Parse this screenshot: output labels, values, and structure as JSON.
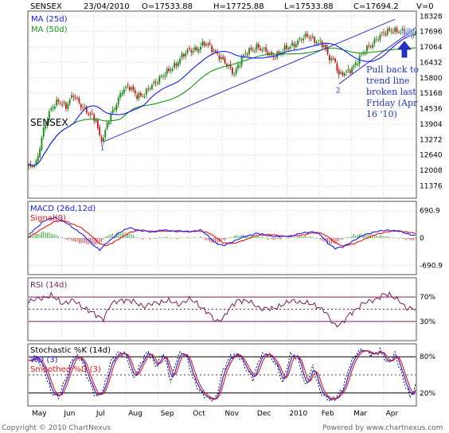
{
  "header": {
    "symbol": "SENSEX",
    "date": "23/04/2010",
    "open": "O=17533.88",
    "high": "H=17725.88",
    "low": "L=17533.88",
    "close": "C=17694.2",
    "volume": "V=0"
  },
  "footer": {
    "copyright": "Copyright © 2010 ChartNexus",
    "powered": "Powered by www.chartnexus.com"
  },
  "chart_data": [
    {
      "type": "candlestick",
      "title": "SENSEX",
      "ylim": [
        10900,
        18500
      ],
      "y_ticks": [
        "18328",
        "17696",
        "17064",
        "16432",
        "15800",
        "15168",
        "14536",
        "13904",
        "13272",
        "12640",
        "12008",
        "11376"
      ],
      "x_ticks": [
        "May",
        "Jun",
        "Jul",
        "Aug",
        "Sep",
        "Oct",
        "Nov",
        "Dec",
        "2010",
        "Feb",
        "Mar",
        "Apr"
      ],
      "legend": [
        {
          "name": "MA (25d)",
          "color": "#1a1aff"
        },
        {
          "name": "MA (50d)",
          "color": "#119911"
        }
      ],
      "price_path": [
        [
          0,
          12100
        ],
        [
          4,
          12300
        ],
        [
          8,
          13700
        ],
        [
          12,
          14500
        ],
        [
          16,
          14900
        ],
        [
          20,
          14600
        ],
        [
          24,
          15100
        ],
        [
          28,
          14700
        ],
        [
          32,
          14300
        ],
        [
          36,
          14100
        ],
        [
          38,
          13400
        ],
        [
          40,
          13300
        ],
        [
          42,
          13900
        ],
        [
          46,
          14600
        ],
        [
          50,
          15300
        ],
        [
          54,
          15400
        ],
        [
          58,
          15100
        ],
        [
          62,
          15100
        ],
        [
          66,
          15500
        ],
        [
          70,
          15800
        ],
        [
          74,
          16000
        ],
        [
          78,
          16300
        ],
        [
          82,
          16700
        ],
        [
          86,
          16900
        ],
        [
          90,
          17000
        ],
        [
          94,
          17200
        ],
        [
          98,
          17000
        ],
        [
          102,
          16700
        ],
        [
          106,
          16300
        ],
        [
          110,
          16000
        ],
        [
          114,
          16600
        ],
        [
          118,
          16900
        ],
        [
          122,
          17100
        ],
        [
          126,
          16900
        ],
        [
          130,
          16700
        ],
        [
          134,
          16800
        ],
        [
          138,
          17000
        ],
        [
          142,
          17200
        ],
        [
          146,
          17400
        ],
        [
          150,
          17500
        ],
        [
          154,
          17300
        ],
        [
          158,
          17100
        ],
        [
          160,
          16700
        ],
        [
          164,
          16500
        ],
        [
          166,
          15900
        ],
        [
          170,
          16000
        ],
        [
          174,
          16300
        ],
        [
          178,
          16700
        ],
        [
          182,
          17100
        ],
        [
          186,
          17400
        ],
        [
          190,
          17600
        ],
        [
          194,
          17800
        ],
        [
          198,
          17700
        ],
        [
          202,
          17600
        ],
        [
          206,
          17694
        ]
      ],
      "trend_line_1": {
        "label": "1",
        "from": [
          40,
          13180
        ],
        "to": [
          196,
          18200
        ]
      },
      "trend_line_2": {
        "label": "2",
        "from": [
          166,
          15550
        ],
        "to": [
          207,
          17850
        ]
      },
      "annotation": "Pull back to trend line broken last Friday (Apr 16 '10)",
      "annotation_lines": [
        "Pull back to",
        "trend line",
        "broken last",
        "Friday (Apr",
        "16 '10)"
      ]
    },
    {
      "type": "line",
      "title": "MACD (26d,12d)",
      "ylim": [
        -900,
        900
      ],
      "y_ticks": [
        "690.9",
        "0",
        "-690.9"
      ],
      "legend": [
        {
          "name": "MACD (26d,12d)",
          "color": "#1a1aff"
        },
        {
          "name": "Signal(9)",
          "color": "#ee1111"
        }
      ],
      "macd_path": [
        [
          0,
          80
        ],
        [
          8,
          420
        ],
        [
          14,
          520
        ],
        [
          20,
          380
        ],
        [
          28,
          120
        ],
        [
          34,
          -150
        ],
        [
          38,
          -300
        ],
        [
          42,
          -120
        ],
        [
          48,
          120
        ],
        [
          54,
          260
        ],
        [
          60,
          180
        ],
        [
          66,
          150
        ],
        [
          72,
          200
        ],
        [
          78,
          170
        ],
        [
          86,
          160
        ],
        [
          92,
          200
        ],
        [
          96,
          50
        ],
        [
          100,
          -120
        ],
        [
          104,
          -200
        ],
        [
          110,
          -70
        ],
        [
          116,
          40
        ],
        [
          122,
          120
        ],
        [
          128,
          60
        ],
        [
          134,
          30
        ],
        [
          140,
          50
        ],
        [
          146,
          120
        ],
        [
          152,
          160
        ],
        [
          156,
          80
        ],
        [
          160,
          -120
        ],
        [
          164,
          -260
        ],
        [
          168,
          -230
        ],
        [
          174,
          -60
        ],
        [
          180,
          90
        ],
        [
          186,
          160
        ],
        [
          192,
          200
        ],
        [
          198,
          170
        ],
        [
          204,
          90
        ],
        [
          207,
          60
        ]
      ],
      "signal_path": [
        [
          0,
          20
        ],
        [
          8,
          250
        ],
        [
          14,
          420
        ],
        [
          20,
          420
        ],
        [
          28,
          260
        ],
        [
          34,
          40
        ],
        [
          38,
          -150
        ],
        [
          42,
          -190
        ],
        [
          48,
          -40
        ],
        [
          54,
          140
        ],
        [
          60,
          200
        ],
        [
          66,
          170
        ],
        [
          72,
          170
        ],
        [
          78,
          180
        ],
        [
          86,
          160
        ],
        [
          92,
          170
        ],
        [
          96,
          140
        ],
        [
          100,
          20
        ],
        [
          104,
          -120
        ],
        [
          110,
          -140
        ],
        [
          116,
          -40
        ],
        [
          122,
          60
        ],
        [
          128,
          90
        ],
        [
          134,
          60
        ],
        [
          140,
          40
        ],
        [
          146,
          70
        ],
        [
          152,
          130
        ],
        [
          156,
          130
        ],
        [
          160,
          40
        ],
        [
          164,
          -120
        ],
        [
          168,
          -200
        ],
        [
          174,
          -150
        ],
        [
          180,
          -20
        ],
        [
          186,
          90
        ],
        [
          192,
          160
        ],
        [
          198,
          180
        ],
        [
          204,
          140
        ],
        [
          207,
          110
        ]
      ]
    },
    {
      "type": "line",
      "title": "RSI (14d)",
      "ylim": [
        0,
        100
      ],
      "y_ticks": [
        "70%",
        "30%"
      ],
      "legend": [
        {
          "name": "RSI (14d)",
          "color": "#7a1f5c"
        }
      ],
      "rsi_path": [
        [
          0,
          62
        ],
        [
          6,
          68
        ],
        [
          12,
          72
        ],
        [
          18,
          60
        ],
        [
          24,
          64
        ],
        [
          30,
          52
        ],
        [
          36,
          40
        ],
        [
          40,
          35
        ],
        [
          44,
          58
        ],
        [
          50,
          66
        ],
        [
          56,
          62
        ],
        [
          62,
          55
        ],
        [
          68,
          60
        ],
        [
          74,
          64
        ],
        [
          80,
          58
        ],
        [
          86,
          66
        ],
        [
          90,
          60
        ],
        [
          96,
          44
        ],
        [
          100,
          30
        ],
        [
          104,
          36
        ],
        [
          108,
          52
        ],
        [
          112,
          66
        ],
        [
          118,
          62
        ],
        [
          124,
          52
        ],
        [
          130,
          50
        ],
        [
          136,
          58
        ],
        [
          142,
          64
        ],
        [
          148,
          60
        ],
        [
          154,
          56
        ],
        [
          158,
          48
        ],
        [
          162,
          30
        ],
        [
          164,
          24
        ],
        [
          168,
          28
        ],
        [
          172,
          42
        ],
        [
          178,
          58
        ],
        [
          184,
          64
        ],
        [
          190,
          74
        ],
        [
          194,
          72
        ],
        [
          198,
          66
        ],
        [
          202,
          50
        ],
        [
          206,
          52
        ]
      ]
    },
    {
      "type": "line",
      "title": "Stochastic %K (14d)",
      "ylim": [
        0,
        100
      ],
      "y_ticks": [
        "80%",
        "20%"
      ],
      "legend": [
        {
          "name": "Stochastic %K (14d)",
          "color": "#000000"
        },
        {
          "name": "%D (3)",
          "color": "#1a1aff"
        },
        {
          "name": "Smoothed %D (3)",
          "color": "#ee1111"
        }
      ],
      "stoch_path": [
        [
          0,
          70
        ],
        [
          4,
          82
        ],
        [
          8,
          60
        ],
        [
          12,
          20
        ],
        [
          16,
          15
        ],
        [
          20,
          45
        ],
        [
          24,
          82
        ],
        [
          28,
          78
        ],
        [
          32,
          40
        ],
        [
          36,
          15
        ],
        [
          40,
          25
        ],
        [
          44,
          72
        ],
        [
          48,
          88
        ],
        [
          52,
          82
        ],
        [
          56,
          45
        ],
        [
          60,
          70
        ],
        [
          64,
          88
        ],
        [
          68,
          65
        ],
        [
          72,
          85
        ],
        [
          76,
          40
        ],
        [
          80,
          85
        ],
        [
          84,
          82
        ],
        [
          88,
          45
        ],
        [
          92,
          20
        ],
        [
          96,
          10
        ],
        [
          100,
          12
        ],
        [
          104,
          55
        ],
        [
          108,
          82
        ],
        [
          112,
          85
        ],
        [
          116,
          60
        ],
        [
          120,
          45
        ],
        [
          124,
          80
        ],
        [
          128,
          85
        ],
        [
          132,
          70
        ],
        [
          136,
          35
        ],
        [
          140,
          85
        ],
        [
          144,
          78
        ],
        [
          148,
          30
        ],
        [
          152,
          65
        ],
        [
          156,
          20
        ],
        [
          160,
          10
        ],
        [
          164,
          12
        ],
        [
          168,
          25
        ],
        [
          172,
          70
        ],
        [
          176,
          88
        ],
        [
          180,
          90
        ],
        [
          184,
          85
        ],
        [
          188,
          88
        ],
        [
          192,
          70
        ],
        [
          196,
          85
        ],
        [
          200,
          45
        ],
        [
          204,
          15
        ],
        [
          207,
          30
        ]
      ]
    }
  ]
}
